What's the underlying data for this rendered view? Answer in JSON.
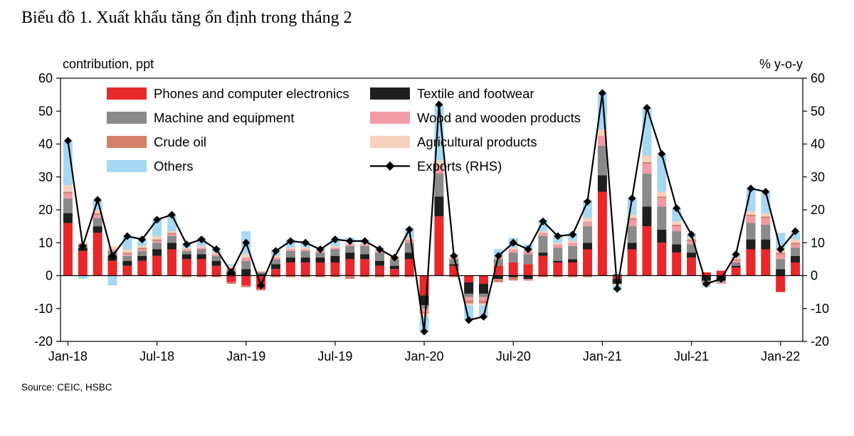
{
  "page": {
    "title": "Biểu đồ 1. Xuất khẩu tăng ổn định trong tháng 2",
    "source": "Source: CEIC, HSBC"
  },
  "chart_data": {
    "type": "bar",
    "subtype": "stacked-bar-with-line-overlay",
    "left_axis_label": "contribution, ppt",
    "right_axis_label": "% y-o-y",
    "ylim": [
      -20,
      60
    ],
    "yticks": [
      -20,
      -10,
      0,
      10,
      20,
      30,
      40,
      50,
      60
    ],
    "grid": false,
    "legend_position": "top-inside-two-columns",
    "x_months": [
      "Jan-18",
      "Feb-18",
      "Mar-18",
      "Apr-18",
      "May-18",
      "Jun-18",
      "Jul-18",
      "Aug-18",
      "Sep-18",
      "Oct-18",
      "Nov-18",
      "Dec-18",
      "Jan-19",
      "Feb-19",
      "Mar-19",
      "Apr-19",
      "May-19",
      "Jun-19",
      "Jul-19",
      "Aug-19",
      "Sep-19",
      "Oct-19",
      "Nov-19",
      "Dec-19",
      "Jan-20",
      "Feb-20",
      "Mar-20",
      "Apr-20",
      "May-20",
      "Jun-20",
      "Jul-20",
      "Aug-20",
      "Sep-20",
      "Oct-20",
      "Nov-20",
      "Dec-20",
      "Jan-21",
      "Feb-21",
      "Mar-21",
      "Apr-21",
      "May-21",
      "Jun-21",
      "Jul-21",
      "Aug-21",
      "Sep-21",
      "Oct-21",
      "Nov-21",
      "Dec-21",
      "Jan-22",
      "Feb-22"
    ],
    "x_tick_labels": [
      "Jan-18",
      "Jul-18",
      "Jan-19",
      "Jul-19",
      "Jan-20",
      "Jul-20",
      "Jan-21",
      "Jul-21",
      "Jan-22"
    ],
    "x_tick_indices": [
      0,
      6,
      12,
      18,
      24,
      30,
      36,
      42,
      48
    ],
    "series": [
      {
        "name": "Phones and computer electronics",
        "color": "#e8282b",
        "values": [
          16,
          7.5,
          13,
          4.5,
          3,
          4.5,
          6,
          8,
          5,
          5,
          3,
          -2,
          -3,
          -4,
          2,
          4,
          4,
          4,
          4,
          5,
          5,
          3,
          2,
          5,
          -6,
          18,
          3,
          -2,
          -2.5,
          3,
          4,
          3.5,
          6,
          4,
          4,
          8,
          25.5,
          -1,
          8,
          15,
          10,
          7,
          5.5,
          1,
          1.5,
          2.5,
          8,
          8,
          -5,
          4
        ]
      },
      {
        "name": "Textile and footwear",
        "color": "#1f1f1f",
        "values": [
          3,
          1,
          2,
          1.5,
          1.5,
          1.5,
          2,
          2,
          1.5,
          1.5,
          1.5,
          1,
          2,
          0.5,
          1.5,
          1.5,
          1.5,
          1.5,
          2,
          2,
          1.5,
          1.5,
          1,
          2,
          -3,
          6,
          0.5,
          -3.5,
          -3,
          -1,
          -0.5,
          -1,
          1,
          0.5,
          1,
          2,
          5,
          -1.5,
          2,
          6,
          4,
          2.5,
          1.5,
          -1.5,
          -1.5,
          0.5,
          3,
          3,
          2,
          2
        ]
      },
      {
        "name": "Machine and equipment",
        "color": "#8a8a8a",
        "values": [
          4.5,
          1,
          2.5,
          1.5,
          1.5,
          1.5,
          2,
          2,
          1,
          1.5,
          1.5,
          1,
          2.5,
          0.5,
          1.5,
          2,
          2,
          1.5,
          2,
          2,
          2.5,
          2.5,
          2,
          3,
          -1,
          7,
          1.5,
          -1,
          -1,
          2,
          3,
          3,
          5,
          4,
          4,
          5,
          9,
          0.5,
          5,
          10,
          7,
          4,
          2.5,
          -0.5,
          -0.5,
          1,
          5,
          4.5,
          3,
          2.5
        ]
      },
      {
        "name": "Wood and wooden products",
        "color": "#f09ba5",
        "values": [
          1.5,
          0.3,
          1,
          0.5,
          0.5,
          0.5,
          0.5,
          0.5,
          0.5,
          0.5,
          0.5,
          0.5,
          1,
          0.2,
          0.5,
          0.5,
          0.5,
          0.5,
          0.5,
          0.5,
          0.5,
          0.5,
          0.5,
          1,
          -1,
          2,
          0.5,
          -1,
          -1,
          0.5,
          1,
          1,
          1,
          1,
          1,
          1.5,
          3,
          0,
          2,
          3,
          2.5,
          1.5,
          1,
          -0.5,
          -0.5,
          0.5,
          2,
          2,
          1.5,
          1
        ]
      },
      {
        "name": "Crude oil",
        "color": "#d68069",
        "values": [
          0.5,
          0,
          0.5,
          0,
          0.5,
          0.5,
          0.5,
          0.5,
          -0.5,
          -0.5,
          -0.5,
          -0.5,
          -0.5,
          -0.5,
          -0.5,
          -0.5,
          -0.5,
          -0.5,
          -0.5,
          -1,
          -0.5,
          -0.5,
          -0.5,
          -0.5,
          -0.5,
          0.5,
          -0.5,
          -1,
          -1,
          -1,
          -1,
          -0.5,
          -0.5,
          -0.5,
          -0.5,
          -0.5,
          0,
          0,
          0.5,
          0.5,
          0.5,
          0.5,
          0.5,
          0,
          0,
          0.5,
          0.5,
          0.5,
          0.5,
          0.5
        ]
      },
      {
        "name": "Agricultural products",
        "color": "#f6d2bc",
        "values": [
          2,
          0.2,
          1,
          1,
          1,
          0.5,
          1,
          0.5,
          0.5,
          0.5,
          0.5,
          0.5,
          1,
          0.3,
          0.5,
          0.5,
          0.5,
          0.5,
          0.5,
          0.5,
          0.5,
          0.5,
          0.5,
          0.5,
          -1,
          1.5,
          0.5,
          -0.5,
          -0.5,
          0.5,
          0.5,
          0.5,
          0.5,
          0.5,
          0.5,
          1,
          2,
          -0.5,
          1,
          2,
          1.5,
          1,
          0.5,
          -0.5,
          0,
          0.5,
          1,
          1,
          1,
          1
        ]
      },
      {
        "name": "Others",
        "color": "#a6d8f1",
        "values": [
          13.5,
          -1,
          3,
          -3,
          4,
          2,
          5,
          5,
          1.5,
          2.5,
          1.5,
          0.5,
          7,
          0,
          2,
          2.5,
          2,
          0.5,
          2.5,
          1.5,
          1,
          0.5,
          0,
          3,
          -4.5,
          17,
          0.5,
          -4.5,
          -3.5,
          2,
          3,
          1.5,
          3.5,
          2.5,
          2.5,
          5.5,
          11,
          -1.5,
          5,
          14.5,
          11.5,
          4,
          1,
          -0.5,
          0,
          1,
          7,
          6.5,
          5,
          2.5
        ]
      }
    ],
    "line": {
      "name": "Exports (RHS)",
      "color": "#000000",
      "values": [
        41,
        9,
        23,
        6,
        12,
        11,
        17,
        18.5,
        9.5,
        11,
        8,
        1,
        10,
        -3,
        7.5,
        10.5,
        10,
        8,
        11,
        10.5,
        10.5,
        8,
        5.5,
        14,
        -17,
        52,
        6,
        -13.5,
        -12.5,
        6,
        10,
        8,
        16.5,
        12,
        12.5,
        22.5,
        55.5,
        -4,
        23.5,
        51,
        37,
        20.5,
        12.5,
        -2.5,
        -1,
        6.5,
        26.5,
        25.5,
        8,
        13.5
      ]
    },
    "legend": {
      "col1": [
        0,
        2,
        4,
        6
      ],
      "col2": [
        1,
        3,
        5,
        "line"
      ]
    }
  }
}
